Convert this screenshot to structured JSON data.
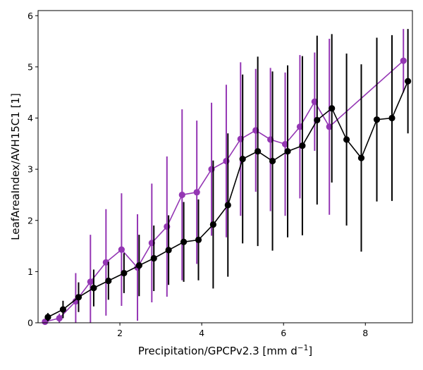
{
  "chart_data": {
    "type": "line",
    "xlabel_main": "Precipitation/GPCPv2.3 [mm d",
    "xlabel_sup": "−1",
    "xlabel_end": "]",
    "ylabel": "LeafAreaIndex/AVH15C1 [1]",
    "xlim": [
      0.0,
      9.15
    ],
    "ylim": [
      0,
      6.1
    ],
    "xticks": [
      2,
      4,
      6,
      8
    ],
    "yticks": [
      0,
      1,
      2,
      3,
      4,
      5,
      6
    ],
    "grid": false,
    "series": [
      {
        "color": "#9436b4",
        "marker": "circle",
        "x": [
          0.17,
          0.52,
          0.92,
          1.28,
          1.66,
          2.04,
          2.43,
          2.78,
          3.15,
          3.52,
          3.88,
          4.24,
          4.6,
          4.95,
          5.32,
          5.68,
          6.04,
          6.4,
          6.76,
          7.12,
          8.93
        ],
        "y": [
          0.02,
          0.09,
          0.42,
          0.8,
          1.18,
          1.43,
          1.08,
          1.56,
          1.88,
          2.5,
          2.55,
          3.0,
          3.16,
          3.59,
          3.76,
          3.58,
          3.49,
          3.83,
          4.32,
          3.83,
          5.12
        ],
        "err": [
          0.02,
          0.09,
          0.55,
          0.92,
          1.04,
          1.1,
          1.04,
          1.16,
          1.37,
          1.67,
          1.4,
          1.3,
          1.49,
          1.5,
          1.2,
          1.4,
          1.4,
          1.4,
          0.96,
          1.72,
          0.62
        ]
      },
      {
        "color": "#000000",
        "marker": "circle",
        "x": [
          0.24,
          0.61,
          0.99,
          1.36,
          1.72,
          2.1,
          2.47,
          2.83,
          3.19,
          3.56,
          3.92,
          4.28,
          4.64,
          5.0,
          5.37,
          5.73,
          6.1,
          6.46,
          6.82,
          7.18,
          7.54,
          7.9,
          8.28,
          8.65,
          9.04
        ],
        "y": [
          0.11,
          0.26,
          0.5,
          0.68,
          0.82,
          0.97,
          1.12,
          1.26,
          1.42,
          1.58,
          1.62,
          1.92,
          2.3,
          3.2,
          3.35,
          3.16,
          3.35,
          3.46,
          3.96,
          4.19,
          3.58,
          3.22,
          3.97,
          4.0,
          4.72
        ],
        "err": [
          0.08,
          0.17,
          0.29,
          0.36,
          0.37,
          0.39,
          0.6,
          0.64,
          0.68,
          0.78,
          0.79,
          1.25,
          1.4,
          1.65,
          1.85,
          1.75,
          1.68,
          1.75,
          1.65,
          1.45,
          1.68,
          1.83,
          1.6,
          1.62,
          1.02
        ]
      }
    ]
  }
}
